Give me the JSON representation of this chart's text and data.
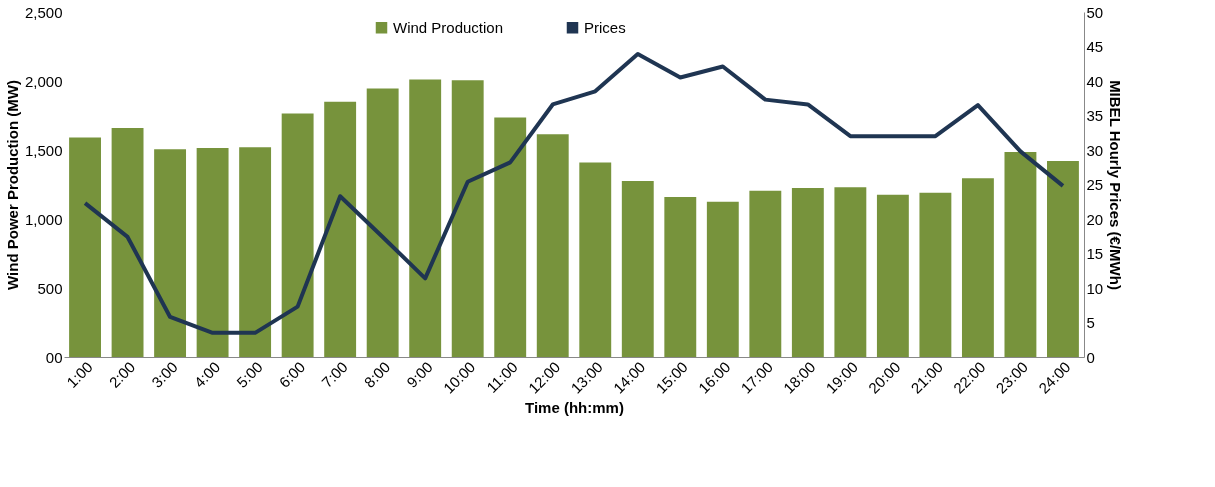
{
  "chart_data": {
    "type": "bar",
    "xlabel": "Time (hh:mm)",
    "ylabel": "Wind Power Production (MW)",
    "y2label": "MIBEL Hourly Prices (€/MWh)",
    "categories": [
      "1:00",
      "2:00",
      "3:00",
      "4:00",
      "5:00",
      "6:00",
      "7:00",
      "8:00",
      "9:00",
      "10:00",
      "11:00",
      "12:00",
      "13:00",
      "14:00",
      "15:00",
      "16:00",
      "17:00",
      "18:00",
      "19:00",
      "20:00",
      "21:00",
      "22:00",
      "23:00",
      "24:00"
    ],
    "series": [
      {
        "name": "Wind Production",
        "color": "#77933c",
        "values": [
          1590,
          1660,
          1505,
          1515,
          1520,
          1765,
          1850,
          1945,
          2010,
          2005,
          1735,
          1615,
          1410,
          1275,
          1160,
          1125,
          1205,
          1225,
          1230,
          1175,
          1190,
          1295,
          1485,
          1420
        ]
      },
      {
        "name": "Prices",
        "type": "line",
        "axis": "y2",
        "color": "#1f3552",
        "values": [
          22.3,
          17.4,
          5.8,
          3.5,
          3.5,
          7.3,
          23.3,
          17.4,
          11.4,
          25.4,
          28.2,
          36.6,
          38.5,
          43.9,
          40.5,
          42.1,
          37.3,
          36.6,
          32,
          32,
          32,
          36.5,
          29.8,
          24.8
        ]
      }
    ],
    "ylim": [
      0,
      2500
    ],
    "yticks": [
      {
        "value": 0,
        "label": "00"
      },
      500,
      {
        "value": 1000,
        "label": "1,000"
      },
      {
        "value": 1500,
        "label": "1,500"
      },
      {
        "value": 2000,
        "label": "2,000"
      },
      {
        "value": 2500,
        "label": "2,500"
      }
    ],
    "y2lim": [
      0,
      50
    ],
    "y2ticks": [
      0,
      5,
      10,
      15,
      20,
      25,
      30,
      35,
      40,
      45,
      50
    ],
    "grid": false,
    "legend": "top",
    "marker": "none",
    "line_style": "solid"
  }
}
